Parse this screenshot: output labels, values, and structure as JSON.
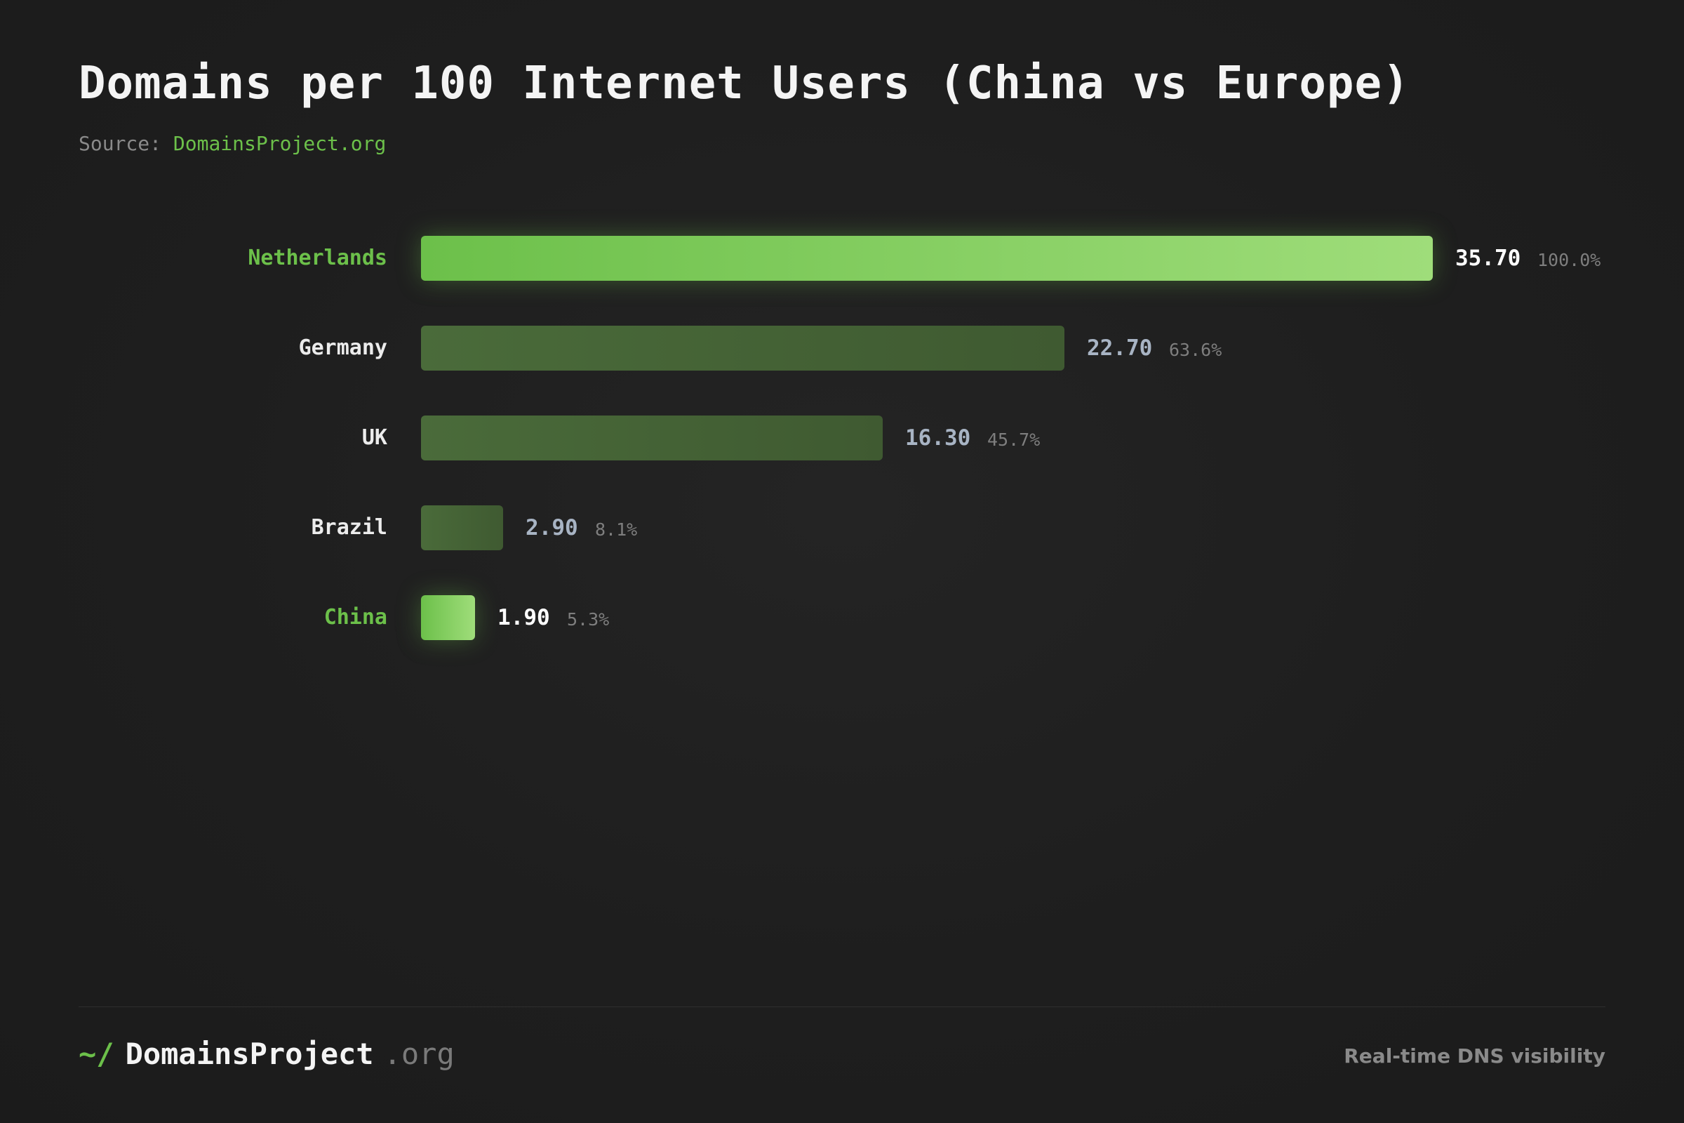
{
  "header": {
    "title": "Domains per 100 Internet Users (China vs Europe)",
    "source_prefix": "Source:",
    "source_link": "DomainsProject.org"
  },
  "colors": {
    "accent": "#6cc04a",
    "accent_light": "#9fdd7a",
    "muted_bar": "#445f36",
    "background": "#1e1e1e"
  },
  "chart_data": {
    "type": "bar",
    "orientation": "horizontal",
    "title": "Domains per 100 Internet Users (China vs Europe)",
    "categories": [
      "Netherlands",
      "Germany",
      "UK",
      "Brazil",
      "China"
    ],
    "values": [
      35.7,
      22.7,
      16.3,
      2.9,
      1.9
    ],
    "value_labels": [
      "35.70",
      "22.70",
      "16.30",
      "2.90",
      "1.90"
    ],
    "percent_labels": [
      "100.0%",
      "63.6%",
      "45.7%",
      "8.1%",
      "5.3%"
    ],
    "highlighted": [
      "Netherlands",
      "China"
    ],
    "xlim": [
      0,
      35.7
    ],
    "grid": false,
    "legend": "none"
  },
  "footer": {
    "brand_mark": "~/",
    "brand_name": "DomainsProject",
    "brand_tld": ".org",
    "tagline": "Real-time DNS visibility"
  }
}
